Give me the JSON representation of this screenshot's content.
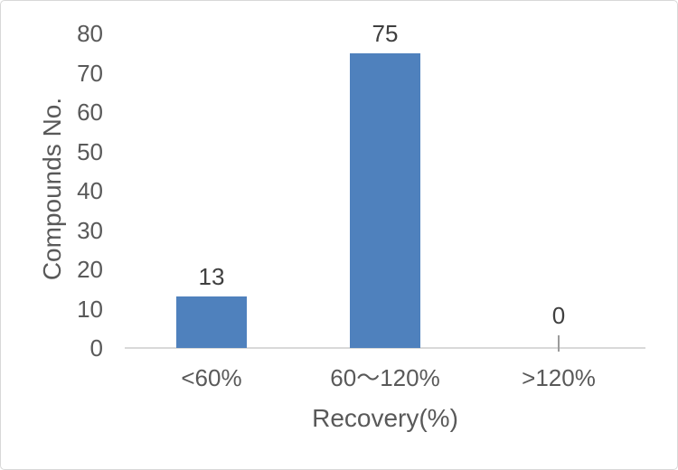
{
  "chart_data": {
    "type": "bar",
    "title": "",
    "categories": [
      "<60%",
      "60～120%",
      ">120%"
    ],
    "values": [
      13,
      75,
      0
    ],
    "data_labels": [
      "13",
      "75",
      "0"
    ],
    "xlabel": "Recovery(%)",
    "ylabel": "Compounds No.",
    "ylim": [
      0,
      80
    ],
    "ytick_step": 10,
    "ytick_labels": [
      "0",
      "10",
      "20",
      "30",
      "40",
      "50",
      "60",
      "70",
      "80"
    ],
    "grid": false,
    "legend": false,
    "colors": {
      "bar": "#4f81bd",
      "axis_line": "#d9d9d9",
      "zero_tick": "#9b9b9b",
      "tick_label": "#595959",
      "data_label": "#3f3f3f",
      "axis_title": "#595959"
    }
  }
}
